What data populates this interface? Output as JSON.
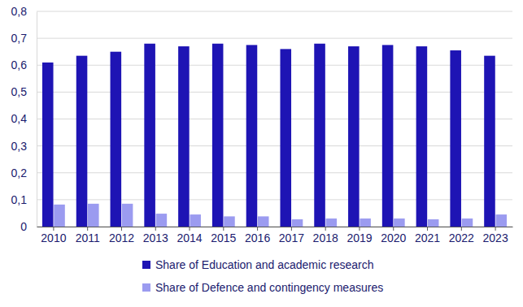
{
  "chart_data": {
    "type": "bar",
    "categories": [
      "2010",
      "2011",
      "2012",
      "2013",
      "2014",
      "2015",
      "2016",
      "2017",
      "2018",
      "2019",
      "2020",
      "2021",
      "2022",
      "2023"
    ],
    "series": [
      {
        "name": "Share of Education and academic research",
        "color": "#1e14b4",
        "values": [
          0.61,
          0.635,
          0.65,
          0.68,
          0.67,
          0.68,
          0.675,
          0.66,
          0.68,
          0.67,
          0.675,
          0.67,
          0.655,
          0.635
        ]
      },
      {
        "name": "Share of Defence and contingency measures",
        "color": "#9b9bf0",
        "values": [
          0.082,
          0.085,
          0.085,
          0.048,
          0.045,
          0.038,
          0.038,
          0.027,
          0.03,
          0.03,
          0.03,
          0.027,
          0.03,
          0.045
        ]
      }
    ],
    "ylim": [
      0,
      0.8
    ],
    "yticks": [
      0,
      {
        "value": 0.1,
        "label": "0,1"
      },
      {
        "value": 0.2,
        "label": "0,2"
      },
      {
        "value": 0.3,
        "label": "0,3"
      },
      {
        "value": 0.4,
        "label": "0,4"
      },
      {
        "value": 0.5,
        "label": "0,5"
      },
      {
        "value": 0.6,
        "label": "0,6"
      },
      {
        "value": 0.7,
        "label": "0,7"
      },
      {
        "value": 0.8,
        "label": "0,8"
      }
    ],
    "grid": true,
    "legend": "bottom"
  }
}
